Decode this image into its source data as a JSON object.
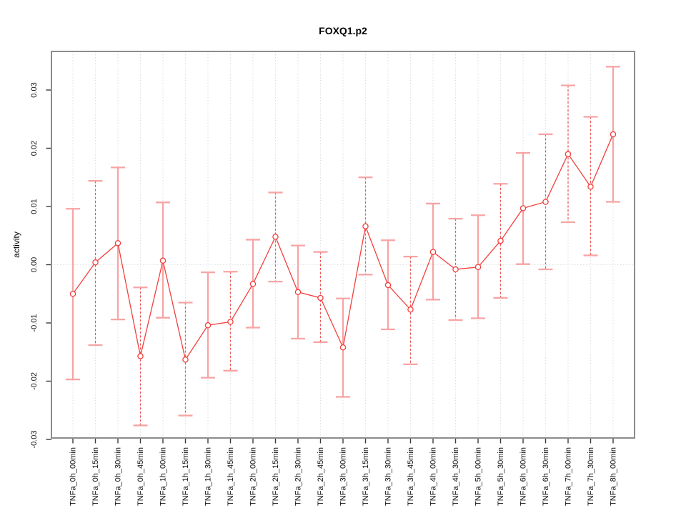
{
  "figure": {
    "title": "FOXQ1.p2",
    "ylabel": "activity"
  },
  "chart_data": {
    "type": "line",
    "title": "FOXQ1.p2",
    "xlabel": "",
    "ylabel": "activity",
    "ylim": [
      -0.03,
      0.0366
    ],
    "yticks": [
      0.03,
      0.02,
      0.01,
      0.0,
      -0.01,
      -0.02,
      -0.03
    ],
    "ytick_labels": [
      "0.03",
      "0.02",
      "0.01",
      "0.00",
      "-0.01",
      "-0.02",
      "-0.03"
    ],
    "grid": "dotted vertical gridline at every category; dotted horizontal line at y=0",
    "legend_position": "none",
    "marker": "open-circle",
    "categories": [
      "TNFa_0h_00min",
      "TNFa_0h_15min",
      "TNFa_0h_30min",
      "TNFa_0h_45min",
      "TNFa_1h_00min",
      "TNFa_1h_15min",
      "TNFa_1h_30min",
      "TNFa_1h_45min",
      "TNFa_2h_00min",
      "TNFa_2h_15min",
      "TNFa_2h_30min",
      "TNFa_2h_45min",
      "TNFa_3h_00min",
      "TNFa_3h_15min",
      "TNFa_3h_30min",
      "TNFa_3h_45min",
      "TNFa_4h_00min",
      "TNFa_4h_30min",
      "TNFa_5h_00min",
      "TNFa_5h_30min",
      "TNFa_6h_00min",
      "TNFa_6h_30min",
      "TNFa_7h_00min",
      "TNFa_7h_30min",
      "TNFa_8h_00min"
    ],
    "series": [
      {
        "name": "activity",
        "values": [
          -0.005,
          0.0004,
          0.0037,
          -0.0157,
          0.0007,
          -0.0163,
          -0.0104,
          -0.0098,
          -0.0033,
          0.0048,
          -0.0047,
          -0.0057,
          -0.0142,
          0.0066,
          -0.0035,
          -0.0077,
          0.0022,
          -0.0008,
          -0.0004,
          0.0041,
          0.0097,
          0.0108,
          0.019,
          0.0134,
          0.0224
        ],
        "error_high": [
          0.0096,
          0.0144,
          0.0167,
          -0.0039,
          0.0107,
          -0.0065,
          -0.0013,
          -0.0012,
          0.0043,
          0.0124,
          0.0033,
          0.0022,
          -0.0058,
          0.015,
          0.0042,
          0.0014,
          0.0105,
          0.0079,
          0.0085,
          0.0139,
          0.0192,
          0.0224,
          0.0308,
          0.0254,
          0.034
        ],
        "error_low": [
          -0.0197,
          -0.0138,
          -0.0094,
          -0.0276,
          -0.0091,
          -0.0259,
          -0.0194,
          -0.0182,
          -0.0108,
          -0.0029,
          -0.0127,
          -0.0133,
          -0.0227,
          -0.0017,
          -0.0111,
          -0.0171,
          -0.006,
          -0.0095,
          -0.0092,
          -0.0057,
          0.0001,
          -0.0008,
          0.0073,
          0.0016,
          0.0108
        ],
        "error_bar_styles": [
          "solid",
          "dashed",
          "solid",
          "dashed",
          "solid",
          "dashed",
          "solid",
          "dashed",
          "solid",
          "dashed",
          "solid",
          "dashed",
          "solid",
          "dashed",
          "solid",
          "dashed",
          "solid",
          "dashed",
          "solid",
          "dashed",
          "solid",
          "dashed",
          "dashed",
          "dashed",
          "solid"
        ]
      }
    ]
  },
  "style": {
    "background": "#ffffff",
    "point_color": "#f2403d",
    "line_color": "#f2403d",
    "errorbar_solid_color": "#f7a4a4",
    "errorbar_dashed_color": "#ee5555",
    "errorbar_cap_color": "#f7a4a4",
    "grid_color": "#dedede",
    "frame_color": "#8c8c8c",
    "tick_color": "#3a3a3a",
    "text_color": "#000000"
  }
}
